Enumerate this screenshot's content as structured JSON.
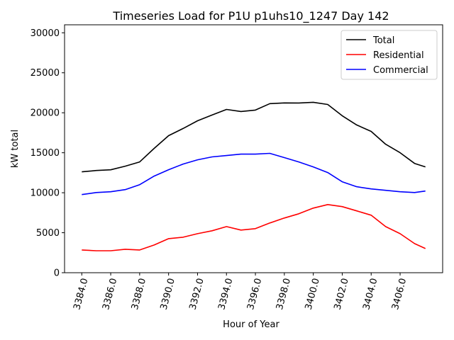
{
  "chart_data": {
    "type": "line",
    "title": "Timeseries Load for P1U p1uhs10_1247  Day 142",
    "xlabel": "Hour of Year",
    "ylabel": "kW total",
    "xlim": [
      3382.81,
      3408.94
    ],
    "ylim": [
      0,
      31000
    ],
    "xticks": [
      3384,
      3386,
      3388,
      3390,
      3392,
      3394,
      3396,
      3398,
      3400,
      3402,
      3404,
      3406
    ],
    "xtick_labels": [
      "3384.0",
      "3386.0",
      "3388.0",
      "3390.0",
      "3392.0",
      "3394.0",
      "3396.0",
      "3398.0",
      "3400.0",
      "3402.0",
      "3404.0",
      "3406.0"
    ],
    "yticks": [
      0,
      5000,
      10000,
      15000,
      20000,
      25000,
      30000
    ],
    "ytick_labels": [
      "0",
      "5000",
      "10000",
      "15000",
      "20000",
      "25000",
      "30000"
    ],
    "grid": false,
    "legend_position": "top-right",
    "x": [
      3384,
      3385,
      3386,
      3387,
      3388,
      3389,
      3390,
      3391,
      3392,
      3393,
      3394,
      3395,
      3396,
      3397,
      3398,
      3399,
      3400,
      3401,
      3402,
      3403,
      3404,
      3405,
      3406,
      3407,
      3407.75
    ],
    "series": [
      {
        "name": "Total",
        "color": "#000000",
        "values": [
          12610,
          12780,
          12870,
          13320,
          13850,
          15540,
          17140,
          18030,
          19000,
          19720,
          20420,
          20160,
          20340,
          21140,
          21230,
          21220,
          21310,
          21040,
          19630,
          18480,
          17670,
          16070,
          15000,
          13670,
          13230
        ]
      },
      {
        "name": "Residential",
        "color": "#ff0000",
        "values": [
          2840,
          2750,
          2750,
          2930,
          2840,
          3460,
          4260,
          4440,
          4880,
          5240,
          5770,
          5330,
          5510,
          6220,
          6840,
          7370,
          8080,
          8520,
          8260,
          7730,
          7190,
          5770,
          4880,
          3640,
          3020
        ]
      },
      {
        "name": "Commercial",
        "color": "#0000ff",
        "values": [
          9770,
          10030,
          10120,
          10390,
          11010,
          12080,
          12880,
          13590,
          14120,
          14480,
          14650,
          14830,
          14830,
          14920,
          14390,
          13850,
          13230,
          12520,
          11370,
          10750,
          10480,
          10300,
          10120,
          10030,
          10210
        ]
      }
    ]
  }
}
